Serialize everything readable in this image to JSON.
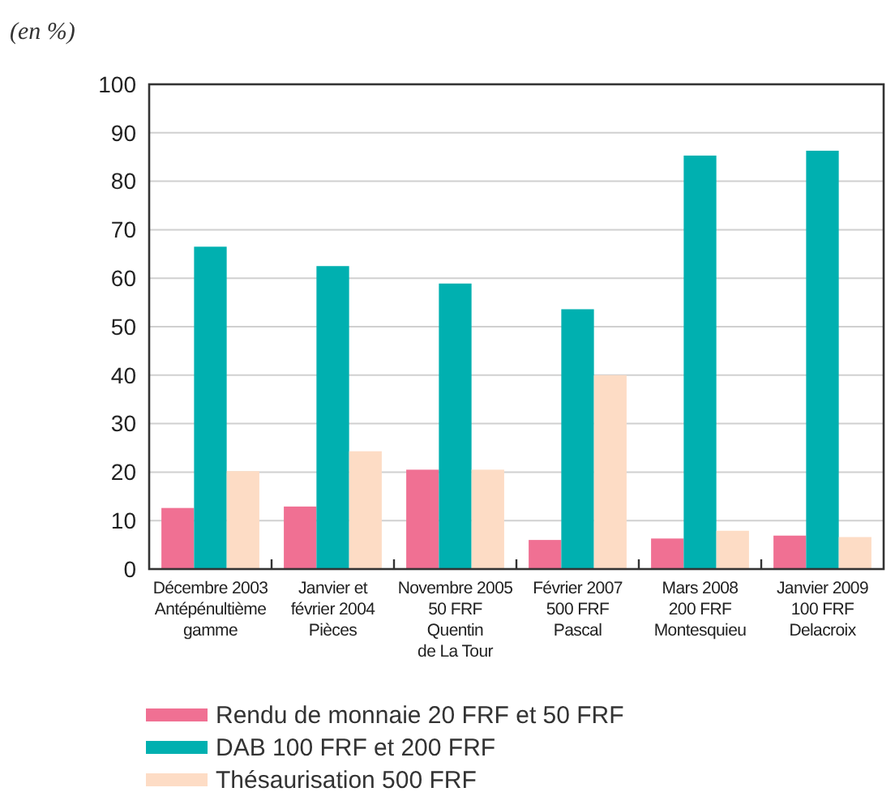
{
  "chart_data": {
    "type": "bar",
    "ylabel": "(en %)",
    "categories": [
      "Décembre 2003\nAntépénultième\ngamme",
      "Janvier et\nfévrier 2004\nPièces",
      "Novembre 2005\n50 FRF\nQuentin\nde La Tour",
      "Février 2007\n500 FRF\nPascal",
      "Mars 2008\n200 FRF\nMontesquieu",
      "Janvier 2009\n100 FRF\nDelacroix"
    ],
    "series": [
      {
        "name": "Rendu de monnaie 20 FRF et 50 FRF",
        "color": "#f07093",
        "values": [
          12.6,
          12.9,
          20.5,
          6.0,
          6.3,
          6.9
        ]
      },
      {
        "name": "DAB 100 FRF et 200 FRF",
        "color": "#00b0b0",
        "values": [
          66.5,
          62.5,
          58.9,
          53.6,
          85.3,
          86.3
        ]
      },
      {
        "name": "Thésaurisation 500 FRF",
        "color": "#fddcc5",
        "values": [
          20.2,
          24.3,
          20.5,
          40.0,
          7.9,
          6.6
        ]
      }
    ],
    "ylim": [
      0,
      100
    ],
    "yticks": [
      0,
      10,
      20,
      30,
      40,
      50,
      60,
      70,
      80,
      90,
      100
    ],
    "grid": "y",
    "legend": "bottom"
  }
}
